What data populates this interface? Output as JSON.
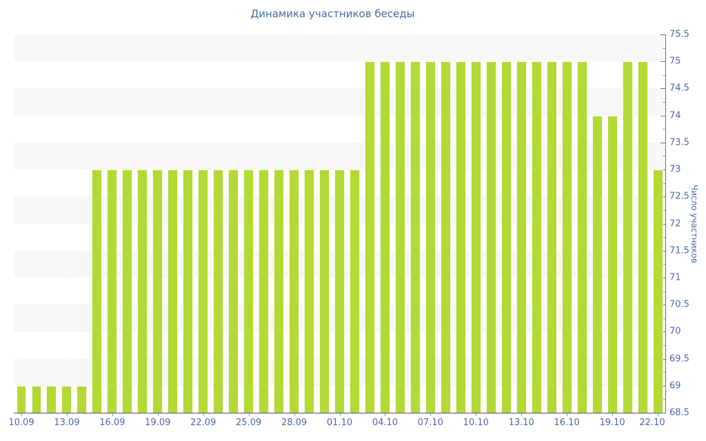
{
  "chart_data": {
    "type": "bar",
    "title": "Динамика участников беседы",
    "xlabel": "",
    "ylabel": "Число участников",
    "ylim": [
      68.5,
      75.5
    ],
    "y_tick_step": 0.5,
    "y_minor_tick_step": 0.25,
    "legend": "none",
    "grid": "alternating horizontal gray bands, faint dashed vertical gridlines at labeled ticks",
    "y_axis_side": "right",
    "y_tick_labels": [
      "75.5",
      "75",
      "74.5",
      "74",
      "73.5",
      "73",
      "72.5",
      "72",
      "71.5",
      "71",
      "70.5",
      "70",
      "69.5",
      "69",
      "68.5"
    ],
    "x_tick_labels": [
      "10.09",
      "13.09",
      "16.09",
      "19.09",
      "22.09",
      "25.09",
      "28.09",
      "01.10",
      "04.10",
      "07.10",
      "10.10",
      "13.10",
      "16.10",
      "19.10",
      "22.10"
    ],
    "x_tick_every": 3,
    "categories": [
      "10.09",
      "11.09",
      "12.09",
      "13.09",
      "14.09",
      "15.09",
      "16.09",
      "17.09",
      "18.09",
      "19.09",
      "20.09",
      "21.09",
      "22.09",
      "23.09",
      "24.09",
      "25.09",
      "26.09",
      "27.09",
      "28.09",
      "29.09",
      "30.09",
      "01.10",
      "02.10",
      "03.10",
      "04.10",
      "05.10",
      "06.10",
      "07.10",
      "08.10",
      "09.10",
      "10.10",
      "11.10",
      "12.10",
      "13.10",
      "14.10",
      "15.10",
      "16.10",
      "17.10",
      "18.10",
      "19.10",
      "20.10",
      "21.10",
      "22.10"
    ],
    "values": [
      69,
      69,
      69,
      69,
      69,
      73,
      73,
      73,
      73,
      73,
      73,
      73,
      73,
      73,
      73,
      73,
      73,
      73,
      73,
      73,
      73,
      73,
      73,
      75,
      75,
      75,
      75,
      75,
      75,
      75,
      75,
      75,
      75,
      75,
      75,
      75,
      75,
      75,
      74,
      74,
      75,
      75,
      73
    ]
  },
  "colors": {
    "bar_fill": "#b3d935",
    "bar_border": "#ffffff",
    "title_text": "#4a69a0",
    "axis_label_text": "#4a67a8",
    "y_axis_line": "#5b72b0",
    "x_axis_line": "#42538f",
    "band_gray": "#f7f7f7",
    "background": "#ffffff"
  }
}
